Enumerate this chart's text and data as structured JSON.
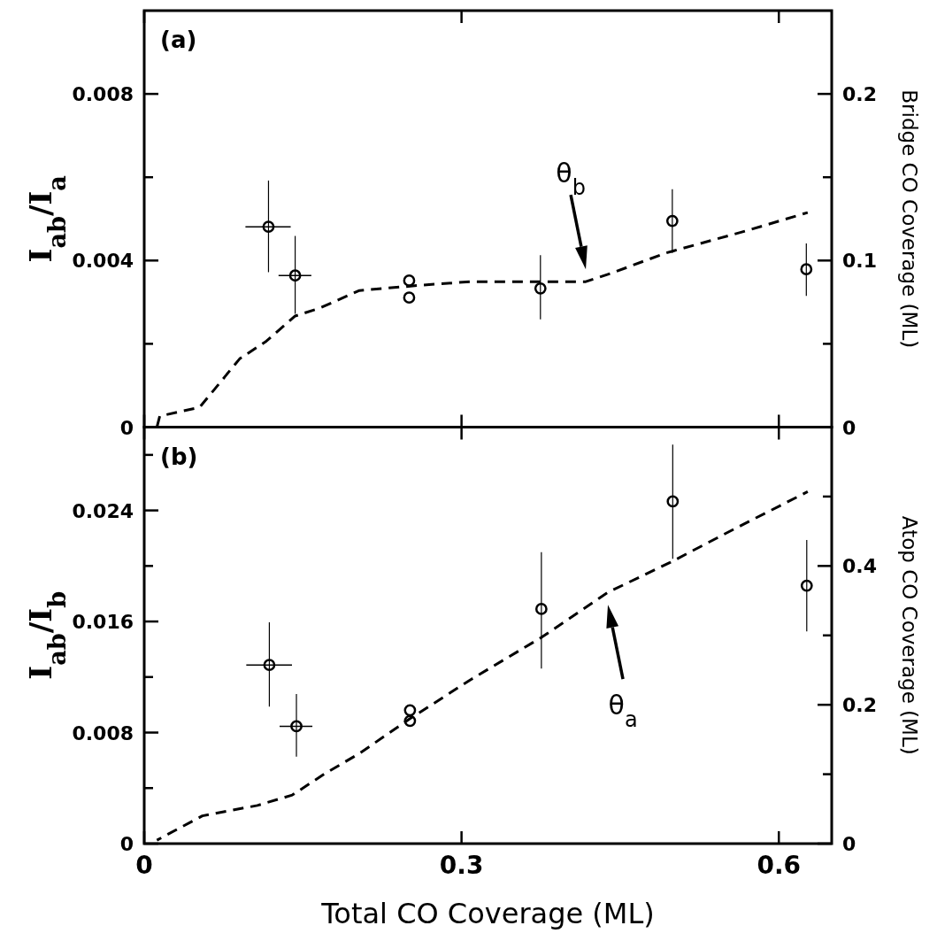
{
  "chart_data": [
    {
      "type": "scatter",
      "title": "(a)",
      "ylabel": "I$_{ab}$/I$_{a}$",
      "y2label": "Bridge CO Coverage (ML)",
      "xlim": [
        0,
        0.65
      ],
      "xticks": [
        0,
        0.3,
        0.6
      ],
      "ylim": [
        0,
        0.01
      ],
      "yticks": [
        0,
        {
          "value": 0.002,
          "label": null
        },
        0.004,
        {
          "value": 0.006,
          "label": null
        },
        0.008
      ],
      "y2lim": [
        0,
        0.25
      ],
      "y2ticks": [
        0,
        {
          "value": 0.05,
          "label": null
        },
        0.1,
        {
          "value": 0.15,
          "label": null
        },
        0.2
      ],
      "tick_labels": "y",
      "series": [
        {
          "type": "scatter",
          "color": "#000000",
          "marker": "circle",
          "x": [
            0.1175,
            0.1427,
            0.2505,
            0.2505,
            0.3746,
            0.4993,
            0.626
          ],
          "values": [
            0.00481,
            0.00364,
            0.00352,
            0.00311,
            0.00333,
            0.00495,
            0.00379
          ],
          "errors": [
            [
              0.00372,
              0.00592
            ],
            [
              0.00272,
              0.00459
            ],
            null,
            null,
            [
              0.00259,
              0.00413
            ],
            [
              0.00418,
              0.00571
            ],
            [
              0.00315,
              0.00441
            ]
          ],
          "xerrors": [
            [
              0.0957,
              0.1385
            ],
            [
              0.127,
              0.158
            ],
            null,
            null,
            null,
            null,
            null
          ]
        },
        {
          "type": "line",
          "axis": "y2",
          "color": "#000000",
          "line_style": "dashed",
          "marker": "none",
          "x": [
            0.012,
            0.0147,
            0.0524,
            0.0902,
            0.1154,
            0.1427,
            0.1657,
            0.2035,
            0.2622,
            0.3084,
            0.4175,
            0.4426,
            0.493,
            0.5685,
            0.6273
          ],
          "values": [
            0,
            0.0066,
            0.0119,
            0.041,
            0.0516,
            0.0667,
            0.0714,
            0.082,
            0.0852,
            0.0873,
            0.0873,
            0.0926,
            0.1045,
            0.1177,
            0.1288
          ]
        }
      ],
      "annotations": [
        "θ$_{b}$"
      ]
    },
    {
      "type": "scatter",
      "title": "(b)",
      "xlabel": "Total CO Coverage (ML)",
      "ylabel": "I$_{ab}$/I$_{b}$",
      "y2label": "Atop CO Coverage (ML)",
      "xlim": [
        0,
        0.65
      ],
      "xticks": [
        0,
        0.3,
        0.6
      ],
      "ylim": [
        0,
        0.03
      ],
      "yticks": [
        0,
        {
          "value": 0.004,
          "label": null
        },
        0.008,
        {
          "value": 0.012,
          "label": null
        },
        0.016,
        {
          "value": 0.02,
          "label": null
        },
        0.024,
        {
          "value": 0.028,
          "label": null
        }
      ],
      "y2lim": [
        0,
        0.6
      ],
      "y2ticks": [
        0,
        {
          "value": 0.1,
          "label": null
        },
        0.2,
        {
          "value": 0.3,
          "label": null
        },
        0.4,
        {
          "value": 0.5,
          "label": null
        }
      ],
      "series": [
        {
          "type": "scatter",
          "color": "#000000",
          "marker": "circle",
          "x": [
            0.1183,
            0.1439,
            0.2513,
            0.2513,
            0.3755,
            0.4997,
            0.6264
          ],
          "values": [
            0.01287,
            0.00845,
            0.00961,
            0.00884,
            0.0169,
            0.02465,
            0.01858
          ],
          "errors": [
            [
              0.00987,
              0.01594
            ],
            [
              0.00626,
              0.01077
            ],
            null,
            null,
            [
              0.01261,
              0.021
            ],
            [
              0.02052,
              0.02874
            ],
            [
              0.01529,
              0.02187
            ]
          ],
          "xerrors": [
            [
              0.0965,
              0.1397
            ],
            [
              0.128,
              0.159
            ],
            null,
            null,
            null,
            null,
            null
          ]
        },
        {
          "type": "line",
          "axis": "y2",
          "color": "#000000",
          "line_style": "dashed",
          "marker": "none",
          "x": [
            0.012,
            0.055,
            0.107,
            0.14,
            0.17,
            0.2035,
            0.2513,
            0.3084,
            0.3755,
            0.4384,
            0.4972,
            0.56,
            0.6273
          ],
          "values": [
            0.005,
            0.04,
            0.055,
            0.07,
            0.1,
            0.13,
            0.18,
            0.236,
            0.297,
            0.362,
            0.405,
            0.455,
            0.507
          ]
        }
      ],
      "annotations": [
        "θ$_{a}$"
      ]
    }
  ]
}
